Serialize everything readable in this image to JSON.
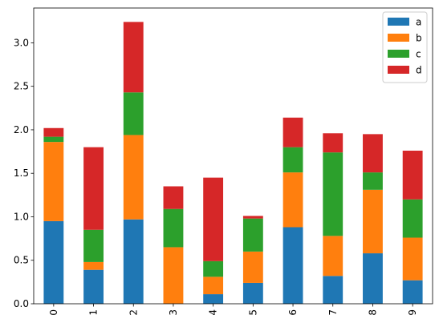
{
  "chart_data": {
    "type": "bar",
    "stacked": true,
    "categories": [
      "0",
      "1",
      "2",
      "3",
      "4",
      "5",
      "6",
      "7",
      "8",
      "9"
    ],
    "series": [
      {
        "name": "a",
        "color": "#1f77b4",
        "values": [
          0.95,
          0.39,
          0.97,
          0.0,
          0.11,
          0.24,
          0.88,
          0.32,
          0.58,
          0.27
        ]
      },
      {
        "name": "b",
        "color": "#ff7f0e",
        "values": [
          0.91,
          0.09,
          0.97,
          0.65,
          0.2,
          0.36,
          0.63,
          0.46,
          0.73,
          0.49
        ]
      },
      {
        "name": "c",
        "color": "#2ca02c",
        "values": [
          0.06,
          0.37,
          0.49,
          0.44,
          0.18,
          0.38,
          0.29,
          0.96,
          0.2,
          0.44
        ]
      },
      {
        "name": "d",
        "color": "#d62728",
        "values": [
          0.1,
          0.95,
          0.81,
          0.26,
          0.96,
          0.03,
          0.34,
          0.22,
          0.44,
          0.56
        ]
      }
    ],
    "title": "",
    "xlabel": "",
    "ylabel": "",
    "ylim": [
      0,
      3.4
    ],
    "yticks": [
      0.0,
      0.5,
      1.0,
      1.5,
      2.0,
      2.5,
      3.0
    ],
    "ytick_labels": [
      "0.0",
      "0.5",
      "1.0",
      "1.5",
      "2.0",
      "2.5",
      "3.0"
    ],
    "grid": false,
    "legend_position": "top-right"
  }
}
